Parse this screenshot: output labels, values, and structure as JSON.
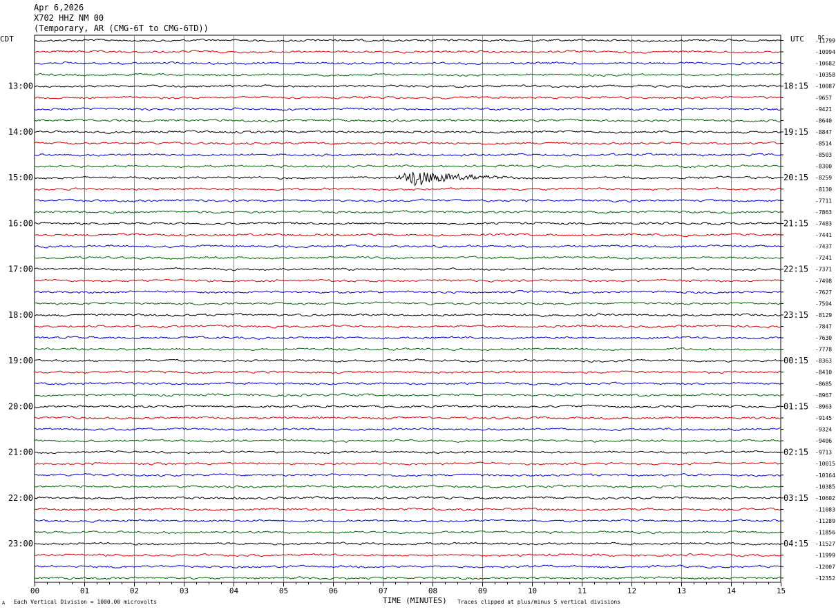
{
  "header": {
    "date": "Apr 6,2026",
    "station": "X702 HHZ NM 00",
    "network": "(Temporary, AR (CMG-6T to CMG-6TD))"
  },
  "left_label": "CDT",
  "right_label": "UTC",
  "dc_label": "DC",
  "bottom": {
    "xlabel": "TIME (MINUTES)",
    "scale_note": "Each Vertical Division = 1000.00 microvolts",
    "clip_note": "Traces clipped at plus/minus 5 vertical divisions",
    "corner_mark": "A"
  },
  "chart_data": {
    "type": "line",
    "x_ticks": [
      "00",
      "01",
      "02",
      "03",
      "04",
      "05",
      "06",
      "07",
      "08",
      "09",
      "10",
      "11",
      "12",
      "13",
      "14",
      "15"
    ],
    "xlim": [
      0,
      15
    ],
    "trace_colors": [
      "#000000",
      "#d40000",
      "#0000cc",
      "#006400"
    ],
    "grid": true,
    "traces_per_hour": 4,
    "cdt_hour_labels": [
      {
        "trace": 4,
        "label": "13:00"
      },
      {
        "trace": 8,
        "label": "14:00"
      },
      {
        "trace": 12,
        "label": "15:00"
      },
      {
        "trace": 16,
        "label": "16:00"
      },
      {
        "trace": 20,
        "label": "17:00"
      },
      {
        "trace": 24,
        "label": "18:00"
      },
      {
        "trace": 28,
        "label": "19:00"
      },
      {
        "trace": 32,
        "label": "20:00"
      },
      {
        "trace": 36,
        "label": "21:00"
      },
      {
        "trace": 40,
        "label": "22:00"
      },
      {
        "trace": 44,
        "label": "23:00"
      }
    ],
    "utc_hour_labels": [
      {
        "trace": 4,
        "label": "18:15"
      },
      {
        "trace": 8,
        "label": "19:15"
      },
      {
        "trace": 12,
        "label": "20:15"
      },
      {
        "trace": 16,
        "label": "21:15"
      },
      {
        "trace": 20,
        "label": "22:15"
      },
      {
        "trace": 24,
        "label": "23:15"
      },
      {
        "trace": 28,
        "label": "00:15"
      },
      {
        "trace": 32,
        "label": "01:15"
      },
      {
        "trace": 36,
        "label": "02:15"
      },
      {
        "trace": 40,
        "label": "03:15"
      },
      {
        "trace": 44,
        "label": "04:15"
      }
    ],
    "dc_offsets": [
      "-11799",
      "-10994",
      "-10682",
      "-10358",
      "-10087",
      "-9657",
      "-9421",
      "-8640",
      "-8847",
      "-8514",
      "-8503",
      "-8300",
      "-8259",
      "-8130",
      "-7711",
      "-7863",
      "-7483",
      "-7441",
      "-7437",
      "-7241",
      "-7371",
      "-7498",
      "-7627",
      "-7594",
      "-8129",
      "-7847",
      "-7630",
      "-7778",
      "-8363",
      "-8410",
      "-8685",
      "-8967",
      "-8963",
      "-9145",
      "-9324",
      "-9406",
      "-9713",
      "-10015",
      "-10164",
      "-10385",
      "-10602",
      "-11083",
      "-11289",
      "-11856",
      "-11527",
      "-11999",
      "-12007",
      "-12352"
    ],
    "events": [
      {
        "trace": 12,
        "start_minute": 7.25,
        "peak_minute": 7.55,
        "end_minute": 9.5
      }
    ]
  }
}
